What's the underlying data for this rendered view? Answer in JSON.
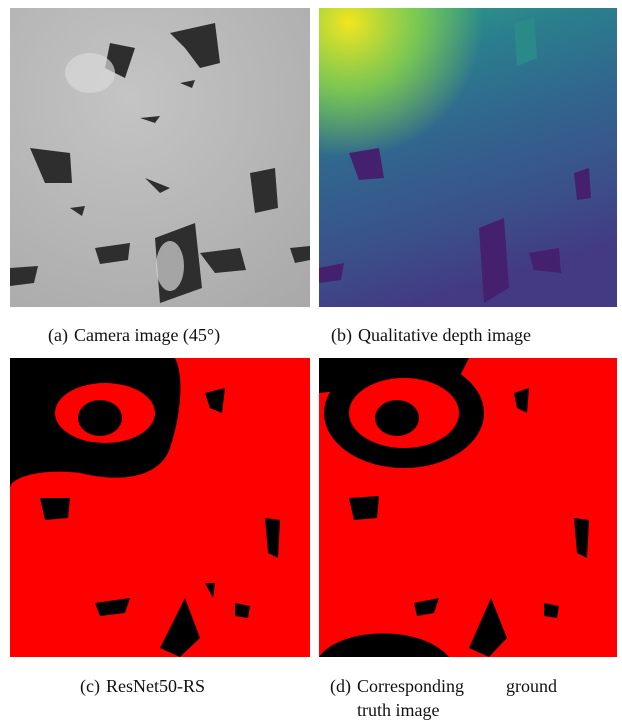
{
  "panels": [
    {
      "label": "(a)",
      "caption": "Camera image (45°)"
    },
    {
      "label": "(b)",
      "caption": "Qualitative depth image"
    },
    {
      "label": "(c)",
      "caption": "ResNet50-RS"
    },
    {
      "label": "(d)",
      "caption": "Corresponding ground truth image"
    }
  ]
}
